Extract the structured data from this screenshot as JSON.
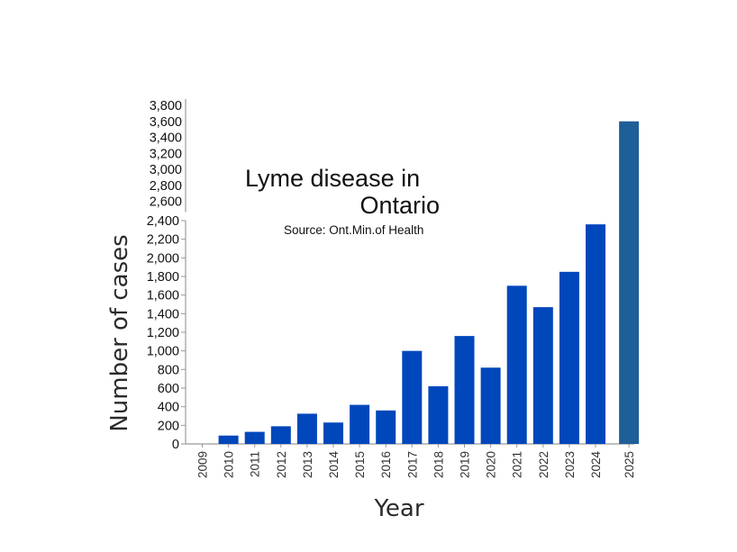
{
  "chart_data": {
    "type": "bar",
    "title": {
      "line1": "Lyme disease in",
      "line2": "Ontario"
    },
    "subtitle": "Source: Ont.Min.of Health",
    "xlabel": "Year",
    "ylabel": "Number of cases",
    "categories": [
      "2009",
      "2010",
      "2011",
      "2012",
      "2013",
      "2014",
      "2015",
      "2016",
      "2017",
      "2018",
      "2019",
      "2020",
      "2021",
      "2022",
      "2023",
      "2024",
      "2025"
    ],
    "values": [
      0,
      90,
      130,
      190,
      325,
      230,
      420,
      360,
      1000,
      620,
      1160,
      820,
      1700,
      1470,
      1850,
      2360,
      3600
    ],
    "y_ticks_lower": [
      "0",
      "200",
      "400",
      "600",
      "800",
      "1,000",
      "1,200",
      "1,400",
      "1,600",
      "1,800",
      "2,000",
      "2,200",
      "2,400"
    ],
    "y_ticks_upper": [
      "2,600",
      "2,800",
      "3,000",
      "3,200",
      "3,400",
      "3,600",
      "3,800"
    ],
    "ylim": [
      0,
      3800
    ],
    "grid": false,
    "colors": {
      "bar": "#0047bb",
      "bar_highlight": "#1f5f99",
      "axis": "#999999",
      "text": "#111111"
    }
  }
}
